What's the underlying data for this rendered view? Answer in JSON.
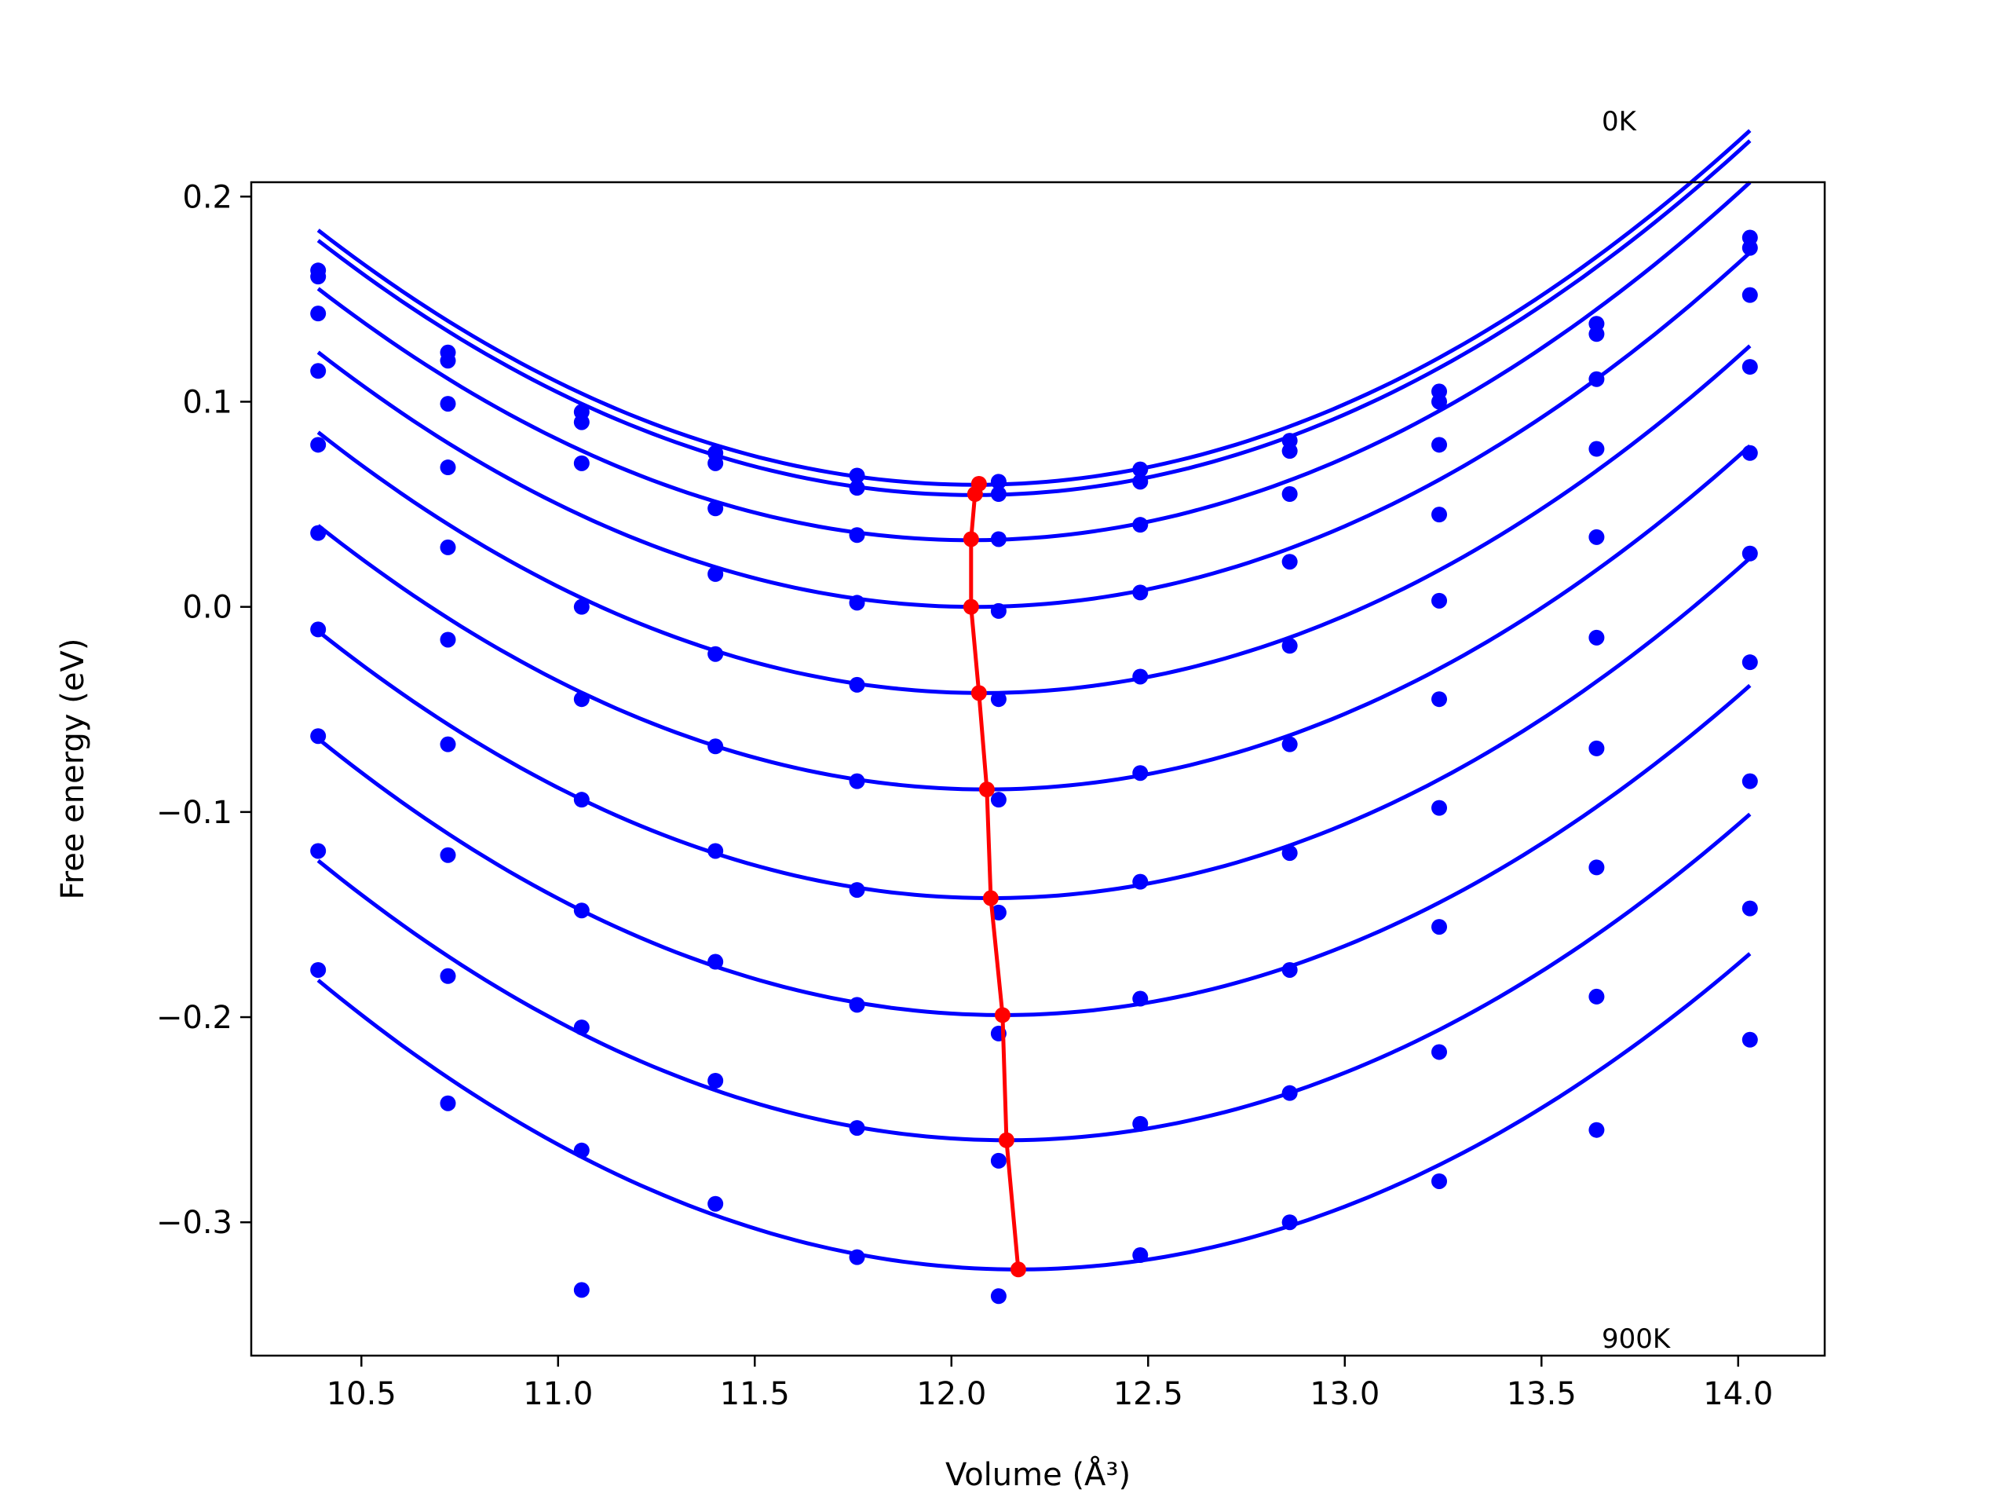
{
  "chart_data": {
    "type": "scatter",
    "title": "",
    "xlabel": "Volume",
    "xlabel_unit": "(Å³)",
    "ylabel": "Free energy (eV)",
    "xlim": [
      10.22,
      14.22
    ],
    "ylim": [
      -0.365,
      0.207
    ],
    "xticks": [
      10.5,
      11.0,
      11.5,
      12.0,
      12.5,
      13.0,
      13.5,
      14.0
    ],
    "xtick_labels": [
      "10.5",
      "11.0",
      "11.5",
      "12.0",
      "12.5",
      "13.0",
      "13.5",
      "14.0"
    ],
    "yticks": [
      0.2,
      0.1,
      0.0,
      -0.1,
      -0.2,
      -0.3
    ],
    "ytick_labels": [
      "0.2",
      "0.1",
      "0.0",
      "−0.1",
      "−0.2",
      "−0.3"
    ],
    "grid": false,
    "annotations": {
      "top": "0K",
      "bottom": "900K"
    },
    "colors": {
      "curves": "#0000ff",
      "minimum_path": "#ff0000"
    },
    "volumes": [
      10.39,
      10.72,
      11.06,
      11.4,
      11.76,
      12.12,
      12.48,
      12.86,
      13.24,
      13.64,
      14.03
    ],
    "series": [
      {
        "energies": [
          0.164,
          0.124,
          0.095,
          0.075,
          0.064,
          0.061,
          0.067,
          0.081,
          0.105,
          0.138,
          0.18
        ],
        "fit": {
          "a": 0.0445,
          "v0": 12.06,
          "e0": 0.0595
        }
      },
      {
        "energies": [
          0.161,
          0.12,
          0.09,
          0.07,
          0.058,
          0.055,
          0.061,
          0.076,
          0.1,
          0.133,
          0.175
        ],
        "fit": {
          "a": 0.0445,
          "v0": 12.06,
          "e0": 0.0545
        }
      },
      {
        "energies": [
          0.143,
          0.099,
          0.07,
          0.048,
          0.035,
          0.033,
          0.04,
          0.055,
          0.079,
          0.111,
          0.152
        ],
        "fit": {
          "a": 0.0445,
          "v0": 12.05,
          "e0": 0.0325
        }
      },
      {
        "energies": [
          0.115,
          0.068,
          0.0,
          0.016,
          0.002,
          -0.002,
          0.007,
          0.022,
          0.045,
          0.077,
          0.117
        ],
        "fit": {
          "a": 0.0445,
          "v0": 12.06,
          "e0": 0.0
        }
      },
      {
        "energies": [
          0.079,
          0.029,
          -0.045,
          -0.023,
          -0.038,
          -0.045,
          -0.034,
          -0.019,
          0.003,
          0.034,
          0.075
        ],
        "fit": {
          "a": 0.0445,
          "v0": 12.08,
          "e0": -0.042
        }
      },
      {
        "energies": [
          0.036,
          -0.016,
          -0.094,
          -0.068,
          -0.085,
          -0.094,
          -0.081,
          -0.067,
          -0.045,
          -0.015,
          0.026
        ],
        "fit": {
          "a": 0.0445,
          "v0": 12.09,
          "e0": -0.089
        }
      },
      {
        "energies": [
          -0.011,
          -0.067,
          -0.148,
          -0.119,
          -0.138,
          -0.149,
          -0.134,
          -0.12,
          -0.098,
          -0.069,
          -0.027
        ],
        "fit": {
          "a": 0.0445,
          "v0": 12.1,
          "e0": -0.142
        }
      },
      {
        "energies": [
          -0.063,
          -0.121,
          -0.205,
          -0.173,
          -0.194,
          -0.208,
          -0.191,
          -0.177,
          -0.156,
          -0.127,
          -0.085
        ],
        "fit": {
          "a": 0.0445,
          "v0": 12.13,
          "e0": -0.199
        }
      },
      {
        "energies": [
          -0.119,
          -0.18,
          -0.265,
          -0.231,
          -0.254,
          -0.27,
          -0.252,
          -0.237,
          -0.217,
          -0.19,
          -0.147
        ],
        "fit": {
          "a": 0.0445,
          "v0": 12.14,
          "e0": -0.26
        }
      },
      {
        "energies": [
          -0.177,
          -0.242,
          -0.333,
          -0.291,
          -0.317,
          -0.336,
          -0.316,
          -0.3,
          -0.28,
          -0.255,
          -0.211
        ],
        "fit": {
          "a": 0.0445,
          "v0": 12.17,
          "e0": -0.323
        }
      }
    ],
    "minimum_path": {
      "x": [
        12.07,
        12.06,
        12.05,
        12.05,
        12.07,
        12.09,
        12.1,
        12.13,
        12.14,
        12.17
      ],
      "y": [
        0.06,
        0.055,
        0.033,
        0.0,
        -0.042,
        -0.089,
        -0.142,
        -0.199,
        -0.26,
        -0.323
      ]
    }
  }
}
